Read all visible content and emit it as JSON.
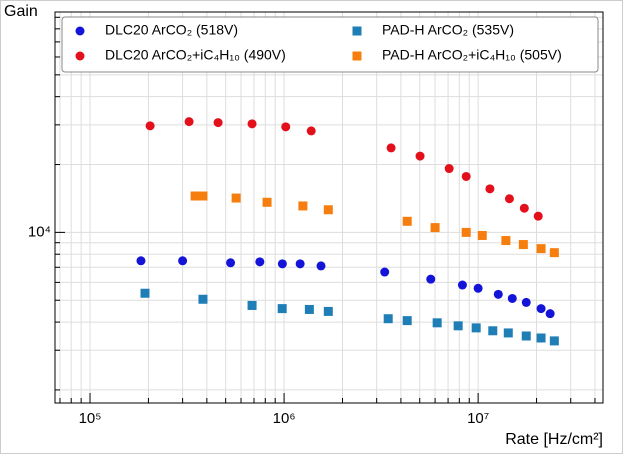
{
  "chart_data": {
    "type": "scatter",
    "y_label": "Gain",
    "x_label": "Rate [Hz/cm²]",
    "xscale": "log",
    "yscale": "log",
    "grid": true,
    "legend": "top",
    "xlim": [
      66000,
      44000000
    ],
    "ylim": [
      1750,
      95000
    ],
    "xticks": [
      {
        "value": 100000,
        "label": "10⁵"
      },
      {
        "value": 1000000,
        "label": "10⁶"
      },
      {
        "value": 10000000,
        "label": "10⁷"
      }
    ],
    "yticks": [
      {
        "value": 10000,
        "label": "10⁴"
      }
    ],
    "xminorticks": [
      70000,
      80000,
      90000,
      200000,
      300000,
      400000,
      500000,
      600000,
      700000,
      800000,
      900000,
      2000000,
      3000000,
      4000000,
      5000000,
      6000000,
      7000000,
      8000000,
      9000000,
      20000000,
      30000000,
      40000000
    ],
    "yminorticks": [
      2000,
      3000,
      4000,
      5000,
      6000,
      7000,
      8000,
      9000,
      20000,
      30000,
      40000,
      50000,
      60000,
      70000,
      80000,
      90000
    ],
    "series": [
      {
        "name": "DLC20 ArCO₂ (518V)",
        "color": "#1414d8",
        "marker": "circle",
        "x": [
          183000,
          300000,
          530000,
          750000,
          980000,
          1210000,
          1550000,
          3300000,
          5700000,
          8300000,
          10000000,
          12700000,
          15000000,
          17700000,
          21100000,
          23500000
        ],
        "values": [
          7480,
          7480,
          7330,
          7400,
          7250,
          7250,
          7100,
          6670,
          6200,
          5840,
          5650,
          5310,
          5090,
          4890,
          4590,
          4360
        ]
      },
      {
        "name": "DLC20 ArCO₂+iC₄H₁₀ (490V)",
        "color": "#e3101c",
        "marker": "circle",
        "x": [
          204000,
          324000,
          457000,
          684000,
          1020000,
          1380000,
          3560000,
          5020000,
          7090000,
          8680000,
          11500000,
          14500000,
          17300000,
          20400000
        ],
        "values": [
          29700,
          31000,
          30700,
          30300,
          29400,
          28200,
          23700,
          21800,
          19200,
          17700,
          15600,
          14100,
          12800,
          11800
        ]
      },
      {
        "name": "PAD-H ArCO₂ (535V)",
        "color": "#1f7eb6",
        "marker": "square",
        "x": [
          192000,
          382000,
          684000,
          978000,
          1350000,
          1690000,
          3440000,
          4310000,
          6150000,
          7890000,
          9770000,
          11900000,
          14300000,
          17700000,
          21100000,
          24700000
        ],
        "values": [
          5370,
          5050,
          4740,
          4590,
          4550,
          4460,
          4140,
          4060,
          3970,
          3850,
          3770,
          3660,
          3580,
          3470,
          3400,
          3300
        ]
      },
      {
        "name": "PAD-H ArCO₂+iC₄H₁₀ (505V)",
        "color": "#f67e0e",
        "marker": "square",
        "x": [
          348000,
          382000,
          566000,
          817000,
          1250000,
          1690000,
          4310000,
          6000000,
          8680000,
          10500000,
          13900000,
          17100000,
          21100000,
          24700000
        ],
        "values": [
          14500,
          14500,
          14200,
          13600,
          13100,
          12600,
          11200,
          10500,
          10000,
          9690,
          9200,
          8830,
          8470,
          8130
        ]
      }
    ]
  }
}
